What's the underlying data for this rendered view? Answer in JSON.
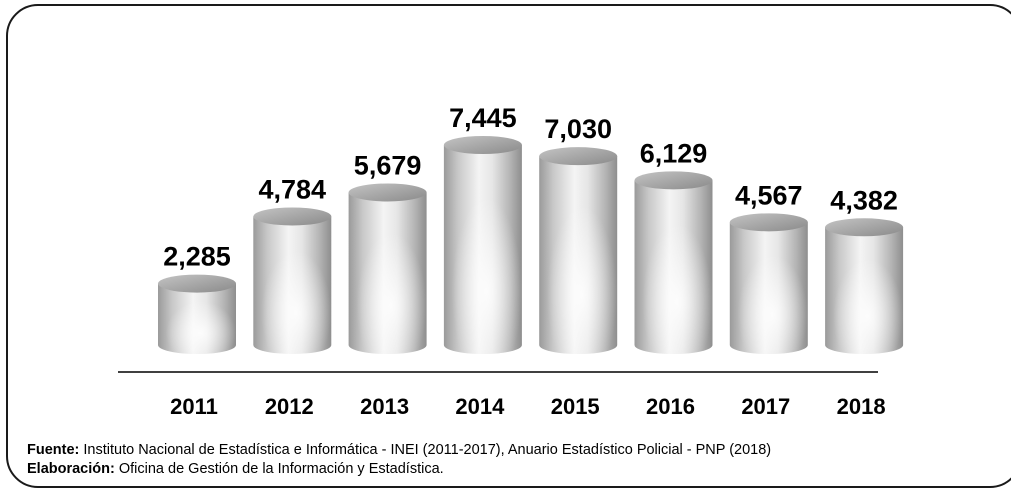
{
  "chart_data": {
    "type": "bar",
    "style": "3d-cylinder",
    "categories": [
      "2011",
      "2012",
      "2013",
      "2014",
      "2015",
      "2016",
      "2017",
      "2018"
    ],
    "values": [
      2285,
      4784,
      5679,
      7445,
      7030,
      6129,
      4567,
      4382
    ],
    "value_labels": [
      "2,285",
      "4,784",
      "5,679",
      "7,445",
      "7,030",
      "6,129",
      "4,567",
      "4,382"
    ],
    "ylim": [
      0,
      7445
    ],
    "grid": false,
    "legend": "none",
    "bar_color": "#b8b8b8"
  },
  "footer": {
    "source_label": "Fuente:",
    "source_text": " Instituto Nacional de Estadística e Informática - INEI (2011-2017), Anuario Estadístico Policial - PNP (2018)",
    "prepared_label": "Elaboración:",
    "prepared_text": " Oficina de Gestión de la Información y Estadística."
  }
}
